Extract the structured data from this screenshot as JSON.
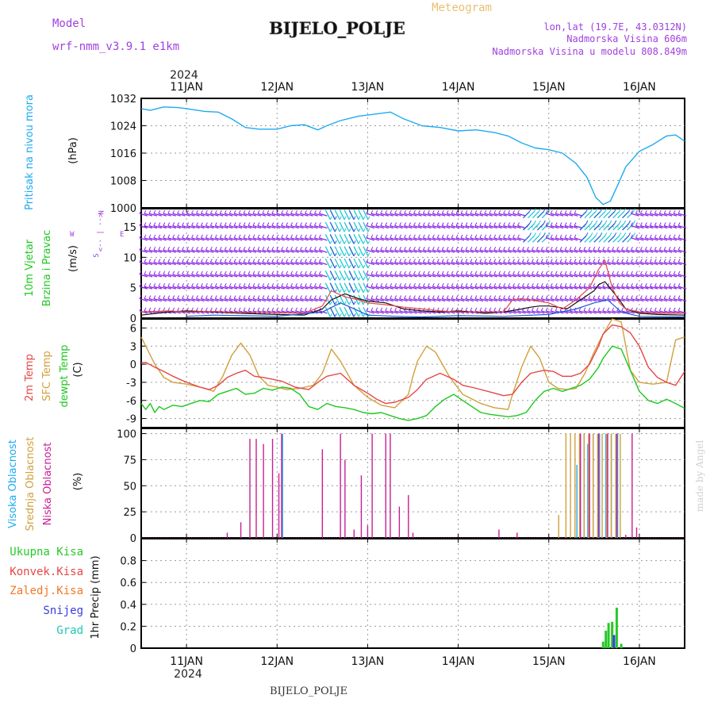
{
  "header": {
    "model_label": "Model",
    "model_name": "wrf-nmm_v3.9.1  e1km",
    "title": "BIJELO_POLJE",
    "subtitle": "Meteogram",
    "lonlat": "lon,lat (19.7E, 43.0312N)",
    "altitude": "Nadmorska Visina 606m",
    "model_altitude": "Nadmorska Visina u modelu 808.849m",
    "year_top": "2024",
    "year_bottom": "2024",
    "footer_title": "BIJELO_POLJE",
    "watermark": "made by Angel"
  },
  "colors": {
    "pressure": "#1eaaf0",
    "wind_purple": "#8c28e6",
    "wind_cyan": "#1ec8d2",
    "wind_blue": "#1e5adc",
    "temp_2m": "#e64646",
    "temp_sfc": "#d2a03c",
    "dewpoint": "#1ec81e",
    "cloud_high": "#1eaaf0",
    "cloud_mid": "#d2a03c",
    "cloud_low": "#c81e96",
    "precip_total": "#28c828",
    "precip_conv": "#e64646",
    "precip_frz": "#f07828",
    "precip_snow": "#3c3cdc",
    "precip_hail": "#1ec8b4"
  },
  "chart_data": [
    {
      "type": "line",
      "panel": "pressure",
      "ylabel": "(hPa)",
      "series_label": "Pritisak na nivou mora",
      "ylim": [
        1000,
        1032
      ],
      "yticks": [
        1000,
        1008,
        1016,
        1024,
        1032
      ],
      "xlim": [
        10.5,
        16.5
      ],
      "xtick_labels": [
        "11JAN",
        "12JAN",
        "13JAN",
        "14JAN",
        "15JAN",
        "16JAN"
      ],
      "x": [
        10.5,
        10.6,
        10.75,
        10.9,
        11.0,
        11.2,
        11.35,
        11.5,
        11.65,
        11.8,
        12.0,
        12.15,
        12.3,
        12.45,
        12.55,
        12.7,
        12.9,
        13.05,
        13.25,
        13.4,
        13.6,
        13.8,
        14.0,
        14.2,
        14.4,
        14.55,
        14.7,
        14.85,
        15.0,
        15.15,
        15.3,
        15.42,
        15.52,
        15.6,
        15.68,
        15.75,
        15.85,
        16.0,
        16.15,
        16.3,
        16.4,
        16.5
      ],
      "y": [
        1029,
        1028.5,
        1029.5,
        1029.3,
        1029,
        1028.2,
        1028,
        1026,
        1023.5,
        1023,
        1023,
        1024,
        1024.3,
        1022.8,
        1024,
        1025.5,
        1026.8,
        1027.3,
        1028,
        1026,
        1024,
        1023.5,
        1022.5,
        1022.8,
        1022,
        1021,
        1019,
        1017.5,
        1017,
        1016,
        1013,
        1009,
        1003,
        1001,
        1002,
        1006,
        1012,
        1016.5,
        1018.5,
        1021,
        1021.3,
        1019.5
      ]
    },
    {
      "type": "line",
      "panel": "wind",
      "ylabel": "(m/s)",
      "series_label": "10m Vjetar Brzina i Pravac",
      "direction_key": [
        "N",
        "<-- | -->",
        "W",
        "E",
        "S"
      ],
      "ylim": [
        0,
        18
      ],
      "yticks": [
        0,
        5,
        10,
        15
      ],
      "xlim": [
        10.5,
        16.5
      ],
      "series": [
        {
          "name": "speed",
          "x": [
            10.5,
            10.8,
            11.0,
            11.3,
            11.6,
            11.8,
            12.0,
            12.3,
            12.5,
            12.6,
            12.75,
            12.9,
            13.0,
            13.2,
            13.4,
            13.6,
            13.8,
            14.0,
            14.3,
            14.5,
            14.7,
            14.8,
            14.9,
            15.0,
            15.1,
            15.2,
            15.3,
            15.4,
            15.5,
            15.55,
            15.62,
            15.7,
            15.78,
            15.85,
            16.0,
            16.2,
            16.5
          ],
          "y": [
            0.5,
            1.0,
            1.2,
            1.0,
            0.8,
            0.7,
            0.6,
            0.5,
            1.5,
            3.0,
            4.0,
            3.2,
            2.8,
            2.5,
            1.5,
            1.2,
            1.0,
            1.2,
            0.8,
            1.0,
            1.5,
            1.8,
            2.0,
            2.0,
            1.8,
            1.5,
            2.5,
            3.5,
            4.5,
            5.5,
            6.0,
            4.5,
            3.0,
            1.5,
            0.8,
            0.6,
            0.5
          ]
        },
        {
          "name": "gust",
          "x": [
            10.5,
            10.8,
            11.0,
            11.3,
            11.6,
            11.8,
            12.0,
            12.3,
            12.5,
            12.6,
            12.75,
            12.9,
            13.0,
            13.2,
            13.4,
            13.6,
            13.8,
            14.0,
            14.3,
            14.5,
            14.6,
            14.7,
            14.8,
            15.0,
            15.15,
            15.3,
            15.45,
            15.55,
            15.62,
            15.7,
            15.78,
            15.85,
            16.0,
            16.2,
            16.5
          ],
          "y": [
            1.0,
            1.2,
            1.0,
            1.1,
            0.9,
            1.0,
            0.9,
            0.8,
            2.0,
            4.5,
            3.5,
            3.0,
            2.5,
            2.2,
            1.8,
            1.5,
            1.2,
            1.0,
            1.0,
            1.0,
            3.0,
            3.2,
            3.0,
            2.5,
            1.5,
            3.0,
            5.0,
            8.0,
            9.5,
            5.0,
            2.5,
            1.5,
            1.0,
            0.8,
            0.8
          ]
        },
        {
          "name": "min",
          "x": [
            11.0,
            11.3,
            11.6,
            12.0,
            12.5,
            12.7,
            12.9,
            13.0,
            13.3,
            13.6,
            14.0,
            14.5,
            15.0,
            15.3,
            15.5,
            15.65,
            15.8,
            16.0,
            16.5
          ],
          "y": [
            0.3,
            0.5,
            0.4,
            0.3,
            1.0,
            2.5,
            1.2,
            0.5,
            0.3,
            0.2,
            0.4,
            0.3,
            0.6,
            1.5,
            2.5,
            3.0,
            1.0,
            0.3,
            0.2
          ]
        }
      ]
    },
    {
      "type": "line",
      "panel": "temperature",
      "ylabel": "(C)",
      "series_labels": [
        "2m Temp",
        "SFC Temp",
        "dewpt Temp"
      ],
      "ylim": [
        -10.5,
        7.5
      ],
      "yticks": [
        -9,
        -6,
        -3,
        0,
        3,
        6
      ],
      "xlim": [
        10.5,
        16.5
      ],
      "series": [
        {
          "name": "2m Temp",
          "x": [
            10.5,
            10.55,
            10.65,
            10.75,
            10.85,
            11.0,
            11.15,
            11.25,
            11.35,
            11.45,
            11.55,
            11.65,
            11.75,
            11.85,
            11.95,
            12.05,
            12.2,
            12.35,
            12.45,
            12.55,
            12.7,
            12.85,
            13.0,
            13.1,
            13.2,
            13.3,
            13.45,
            13.55,
            13.65,
            13.8,
            13.95,
            14.05,
            14.2,
            14.4,
            14.5,
            14.6,
            14.7,
            14.8,
            14.95,
            15.05,
            15.15,
            15.25,
            15.35,
            15.45,
            15.55,
            15.6,
            15.7,
            15.8,
            15.9,
            16.0,
            16.1,
            16.2,
            16.3,
            16.4,
            16.5
          ],
          "y": [
            0.2,
            0.3,
            -0.5,
            -1.2,
            -2.0,
            -3.0,
            -3.8,
            -4.2,
            -3.5,
            -2.2,
            -1.5,
            -1.0,
            -2.0,
            -2.2,
            -2.5,
            -2.8,
            -3.8,
            -4.2,
            -3.0,
            -2.0,
            -1.5,
            -3.5,
            -4.8,
            -5.8,
            -6.5,
            -6.3,
            -5.5,
            -4.2,
            -2.5,
            -1.5,
            -2.5,
            -3.5,
            -4.0,
            -4.8,
            -5.2,
            -5.0,
            -3.0,
            -1.5,
            -1.0,
            -1.2,
            -2.0,
            -2.0,
            -1.5,
            0.0,
            3.0,
            5.0,
            6.5,
            6.2,
            5.2,
            3.0,
            -0.5,
            -2.2,
            -3.0,
            -3.5,
            -1.2
          ]
        },
        {
          "name": "SFC Temp",
          "x": [
            10.5,
            10.55,
            10.65,
            10.75,
            10.85,
            11.0,
            11.2,
            11.3,
            11.4,
            11.5,
            11.6,
            11.7,
            11.8,
            11.9,
            12.0,
            12.1,
            12.25,
            12.4,
            12.5,
            12.6,
            12.7,
            12.85,
            13.0,
            13.15,
            13.3,
            13.45,
            13.5,
            13.55,
            13.65,
            13.75,
            13.9,
            14.05,
            14.25,
            14.4,
            14.55,
            14.6,
            14.7,
            14.8,
            14.9,
            15.0,
            15.1,
            15.2,
            15.3,
            15.4,
            15.5,
            15.6,
            15.7,
            15.8,
            15.85,
            15.9,
            16.0,
            16.15,
            16.3,
            16.4,
            16.5
          ],
          "y": [
            4.5,
            3.0,
            0.0,
            -2.2,
            -3.0,
            -3.3,
            -4.0,
            -4.5,
            -2.0,
            1.5,
            3.5,
            1.5,
            -2.0,
            -3.5,
            -3.8,
            -4.2,
            -4.0,
            -3.5,
            -1.5,
            2.5,
            0.5,
            -3.5,
            -5.5,
            -6.8,
            -7.2,
            -5.0,
            -2.0,
            0.5,
            3.0,
            2.0,
            -2.0,
            -5.0,
            -6.5,
            -7.2,
            -7.5,
            -5.0,
            -0.5,
            3.0,
            1.0,
            -3.0,
            -4.0,
            -4.2,
            -4.0,
            -1.5,
            2.0,
            5.0,
            7.5,
            7.0,
            3.0,
            -1.0,
            -3.0,
            -3.3,
            -3.0,
            4.0,
            4.5
          ]
        },
        {
          "name": "dewpt Temp",
          "x": [
            10.5,
            10.55,
            10.6,
            10.65,
            10.7,
            10.75,
            10.85,
            10.95,
            11.05,
            11.15,
            11.25,
            11.35,
            11.45,
            11.55,
            11.65,
            11.75,
            11.85,
            11.95,
            12.05,
            12.15,
            12.25,
            12.35,
            12.45,
            12.55,
            12.65,
            12.75,
            12.85,
            12.95,
            13.05,
            13.15,
            13.25,
            13.35,
            13.45,
            13.55,
            13.65,
            13.75,
            13.85,
            13.95,
            14.05,
            14.15,
            14.25,
            14.35,
            14.45,
            14.55,
            14.65,
            14.75,
            14.85,
            14.95,
            15.05,
            15.15,
            15.25,
            15.35,
            15.45,
            15.55,
            15.6,
            15.7,
            15.8,
            15.9,
            16.0,
            16.1,
            16.2,
            16.3,
            16.4,
            16.5
          ],
          "y": [
            -6.5,
            -7.5,
            -6.5,
            -8.0,
            -7.0,
            -7.5,
            -6.8,
            -7.0,
            -6.5,
            -6.0,
            -6.2,
            -5.0,
            -4.5,
            -4.0,
            -5.0,
            -4.8,
            -4.0,
            -4.3,
            -3.8,
            -4.0,
            -5.0,
            -7.0,
            -7.5,
            -6.5,
            -7.0,
            -7.2,
            -7.5,
            -8.0,
            -8.2,
            -8.0,
            -8.5,
            -9.0,
            -9.3,
            -9.0,
            -8.5,
            -7.0,
            -5.8,
            -5.0,
            -6.0,
            -7.0,
            -8.0,
            -8.3,
            -8.5,
            -8.7,
            -8.5,
            -8.0,
            -6.0,
            -4.5,
            -4.0,
            -4.5,
            -4.0,
            -3.5,
            -2.5,
            -0.5,
            1.0,
            3.0,
            2.5,
            -1.0,
            -4.5,
            -6.0,
            -6.5,
            -5.8,
            -6.5,
            -7.3
          ]
        }
      ]
    },
    {
      "type": "bar",
      "panel": "cloud",
      "ylabel": "(%)",
      "series_labels": [
        "Visoka Oblacnost",
        "Srednja Oblacnost",
        "Niska Oblacnost"
      ],
      "ylim": [
        0,
        105
      ],
      "yticks": [
        0,
        25,
        50,
        75,
        100
      ],
      "xlim": [
        10.5,
        16.5
      ],
      "series": [
        {
          "name": "Visoka Oblacnost",
          "x": [
            12.05,
            15.3,
            15.38,
            15.42,
            15.48,
            15.55,
            15.62,
            15.68,
            15.75
          ],
          "y": [
            100,
            70,
            100,
            90,
            100,
            100,
            100,
            100,
            100
          ]
        },
        {
          "name": "Srednja Oblacnost",
          "x": [
            15.12,
            15.2,
            15.25,
            15.3,
            15.35,
            15.4,
            15.45,
            15.5,
            15.55,
            15.6,
            15.65,
            15.7,
            15.75,
            15.8
          ],
          "y": [
            22,
            100,
            100,
            100,
            100,
            100,
            100,
            100,
            100,
            100,
            100,
            100,
            100,
            100
          ]
        },
        {
          "name": "Niska Oblacnost",
          "x": [
            11.45,
            11.6,
            11.7,
            11.77,
            11.85,
            11.95,
            12.02,
            12.05,
            12.5,
            12.7,
            12.75,
            12.85,
            12.93,
            13.0,
            13.05,
            13.2,
            13.25,
            13.35,
            13.45,
            13.5,
            14.45,
            14.65,
            15.35,
            15.45,
            15.55,
            15.65,
            15.75,
            15.85,
            15.92,
            15.97
          ],
          "y": [
            5,
            15,
            95,
            95,
            90,
            95,
            62,
            100,
            85,
            100,
            75,
            8,
            60,
            12,
            100,
            100,
            100,
            30,
            41,
            5,
            8,
            5,
            100,
            100,
            100,
            100,
            100,
            3,
            100,
            10
          ]
        }
      ]
    },
    {
      "type": "bar",
      "panel": "precipitation",
      "ylabel": "1hr Precip (mm)",
      "series_labels": [
        "Ukupna Kisa",
        "Konvek.Kisa",
        "Zaledj.Kisa",
        "Snijeg",
        "Grad"
      ],
      "ylim": [
        0,
        1.0
      ],
      "yticks": [
        0,
        0.2,
        0.4,
        0.6,
        0.8
      ],
      "xlim": [
        10.5,
        16.5
      ],
      "xtick_labels": [
        "11JAN",
        "12JAN",
        "13JAN",
        "14JAN",
        "15JAN",
        "16JAN"
      ],
      "series": [
        {
          "name": "Ukupna Kisa",
          "x": [
            15.6,
            15.63,
            15.66,
            15.7,
            15.75,
            15.8
          ],
          "y": [
            0.06,
            0.16,
            0.23,
            0.24,
            0.37,
            0.04
          ]
        },
        {
          "name": "Snijeg",
          "x": [
            15.72
          ],
          "y": [
            0.12
          ]
        }
      ]
    }
  ]
}
